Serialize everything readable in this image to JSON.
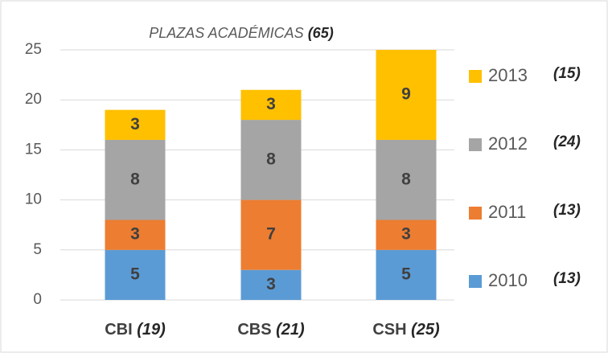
{
  "chart_data": {
    "type": "stacked_bar",
    "title": "PLAZAS ACADÉMICAS",
    "title_total": "(65)",
    "categories": [
      "CBI",
      "CBS",
      "CSH"
    ],
    "category_totals": [
      "(19)",
      "(21)",
      "(25)"
    ],
    "series": [
      {
        "name": "2010",
        "total_label": "(13)",
        "color": "#5b9bd5",
        "values": [
          5,
          3,
          5
        ]
      },
      {
        "name": "2011",
        "total_label": "(13)",
        "color": "#ed7d31",
        "values": [
          3,
          7,
          3
        ]
      },
      {
        "name": "2012",
        "total_label": "(24)",
        "color": "#a5a5a5",
        "values": [
          8,
          8,
          8
        ]
      },
      {
        "name": "2013",
        "total_label": "(15)",
        "color": "#ffc000",
        "values": [
          3,
          3,
          9
        ]
      }
    ],
    "ylim": [
      0,
      25
    ],
    "yticks": [
      0,
      5,
      10,
      15,
      20,
      25
    ],
    "grid": true,
    "legend": "right"
  }
}
